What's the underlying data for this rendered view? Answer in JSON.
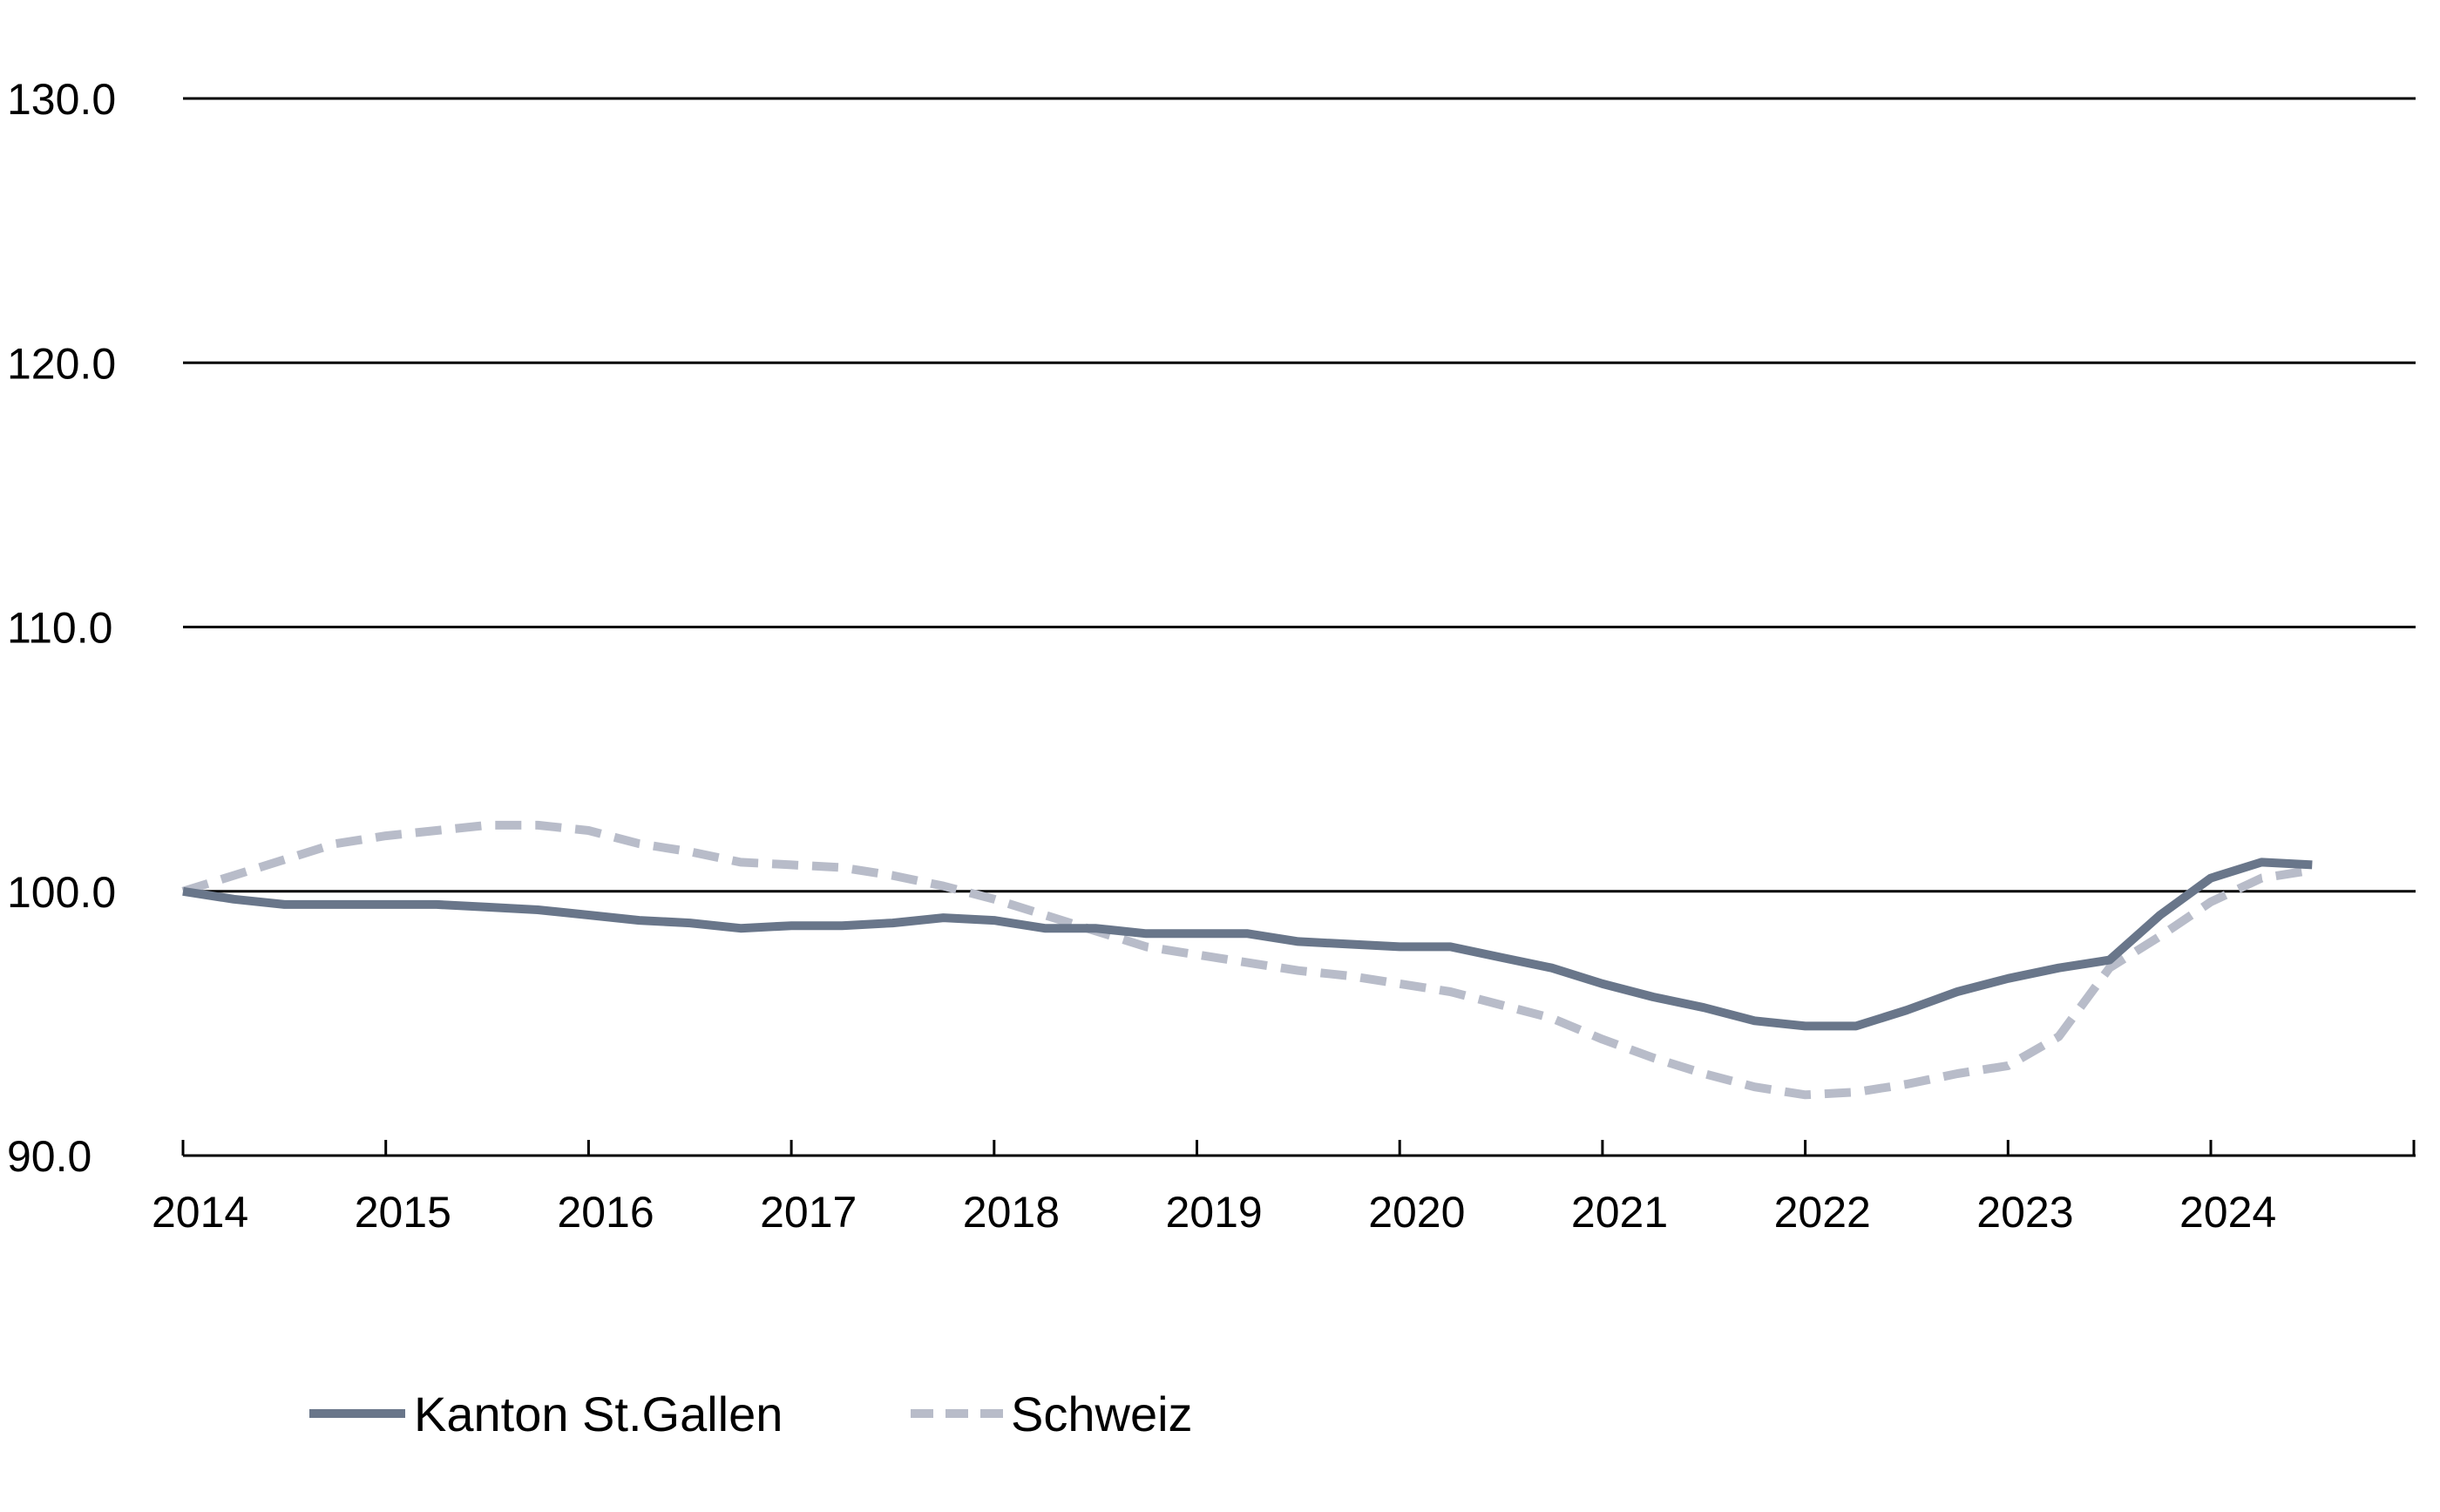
{
  "chart_data": {
    "type": "line",
    "title": "",
    "xlabel": "",
    "ylabel": "",
    "xlim": [
      2014,
      2025
    ],
    "ylim": [
      90,
      130
    ],
    "x_ticks": [
      2014,
      2015,
      2016,
      2017,
      2018,
      2019,
      2020,
      2021,
      2022,
      2023,
      2024
    ],
    "x_tick_labels": [
      "2014",
      "2015",
      "2016",
      "2017",
      "2018",
      "2019",
      "2020",
      "2021",
      "2022",
      "2023",
      "2024"
    ],
    "y_ticks": [
      90,
      100,
      110,
      120,
      130
    ],
    "y_tick_labels": [
      "90.0",
      "100.0",
      "110.0",
      "120.0",
      "130.0"
    ],
    "grid": "horizontal",
    "legend_position": "bottom-left",
    "series": [
      {
        "name": "Kanton St.Gallen",
        "color": "#69768a",
        "style": "solid",
        "points": [
          [
            2014.0,
            100.0
          ],
          [
            2014.25,
            99.7
          ],
          [
            2014.5,
            99.5
          ],
          [
            2014.75,
            99.5
          ],
          [
            2015.0,
            99.5
          ],
          [
            2015.25,
            99.5
          ],
          [
            2015.5,
            99.4
          ],
          [
            2015.75,
            99.3
          ],
          [
            2016.0,
            99.1
          ],
          [
            2016.25,
            98.9
          ],
          [
            2016.5,
            98.8
          ],
          [
            2016.75,
            98.6
          ],
          [
            2017.0,
            98.7
          ],
          [
            2017.25,
            98.7
          ],
          [
            2017.5,
            98.8
          ],
          [
            2017.75,
            99.0
          ],
          [
            2018.0,
            98.9
          ],
          [
            2018.25,
            98.6
          ],
          [
            2018.5,
            98.6
          ],
          [
            2018.75,
            98.4
          ],
          [
            2019.0,
            98.4
          ],
          [
            2019.25,
            98.4
          ],
          [
            2019.5,
            98.1
          ],
          [
            2019.75,
            98.0
          ],
          [
            2020.0,
            97.9
          ],
          [
            2020.25,
            97.9
          ],
          [
            2020.5,
            97.5
          ],
          [
            2020.75,
            97.1
          ],
          [
            2021.0,
            96.5
          ],
          [
            2021.25,
            96.0
          ],
          [
            2021.5,
            95.6
          ],
          [
            2021.75,
            95.1
          ],
          [
            2022.0,
            94.9
          ],
          [
            2022.25,
            94.9
          ],
          [
            2022.5,
            95.5
          ],
          [
            2022.75,
            96.2
          ],
          [
            2023.0,
            96.7
          ],
          [
            2023.25,
            97.1
          ],
          [
            2023.5,
            97.4
          ],
          [
            2023.75,
            99.1
          ],
          [
            2024.0,
            100.5
          ],
          [
            2024.25,
            101.1
          ],
          [
            2024.5,
            101.0
          ]
        ]
      },
      {
        "name": "Schweiz",
        "color": "#b8bcc9",
        "style": "dashed",
        "points": [
          [
            2014.0,
            100.0
          ],
          [
            2014.25,
            100.6
          ],
          [
            2014.5,
            101.2
          ],
          [
            2014.75,
            101.8
          ],
          [
            2015.0,
            102.1
          ],
          [
            2015.25,
            102.3
          ],
          [
            2015.5,
            102.5
          ],
          [
            2015.75,
            102.5
          ],
          [
            2016.0,
            102.3
          ],
          [
            2016.25,
            101.8
          ],
          [
            2016.5,
            101.5
          ],
          [
            2016.75,
            101.1
          ],
          [
            2017.0,
            101.0
          ],
          [
            2017.25,
            100.9
          ],
          [
            2017.5,
            100.6
          ],
          [
            2017.75,
            100.2
          ],
          [
            2018.0,
            99.7
          ],
          [
            2018.25,
            99.1
          ],
          [
            2018.5,
            98.5
          ],
          [
            2018.75,
            97.9
          ],
          [
            2019.0,
            97.6
          ],
          [
            2019.25,
            97.3
          ],
          [
            2019.5,
            97.0
          ],
          [
            2019.75,
            96.8
          ],
          [
            2020.0,
            96.5
          ],
          [
            2020.25,
            96.2
          ],
          [
            2020.5,
            95.7
          ],
          [
            2020.75,
            95.2
          ],
          [
            2021.0,
            94.4
          ],
          [
            2021.25,
            93.7
          ],
          [
            2021.5,
            93.1
          ],
          [
            2021.75,
            92.6
          ],
          [
            2022.0,
            92.3
          ],
          [
            2022.25,
            92.4
          ],
          [
            2022.5,
            92.7
          ],
          [
            2022.75,
            93.1
          ],
          [
            2023.0,
            93.4
          ],
          [
            2023.25,
            94.5
          ],
          [
            2023.5,
            97.1
          ],
          [
            2023.75,
            98.3
          ],
          [
            2024.0,
            99.6
          ],
          [
            2024.25,
            100.5
          ],
          [
            2024.5,
            100.8
          ]
        ]
      }
    ]
  }
}
